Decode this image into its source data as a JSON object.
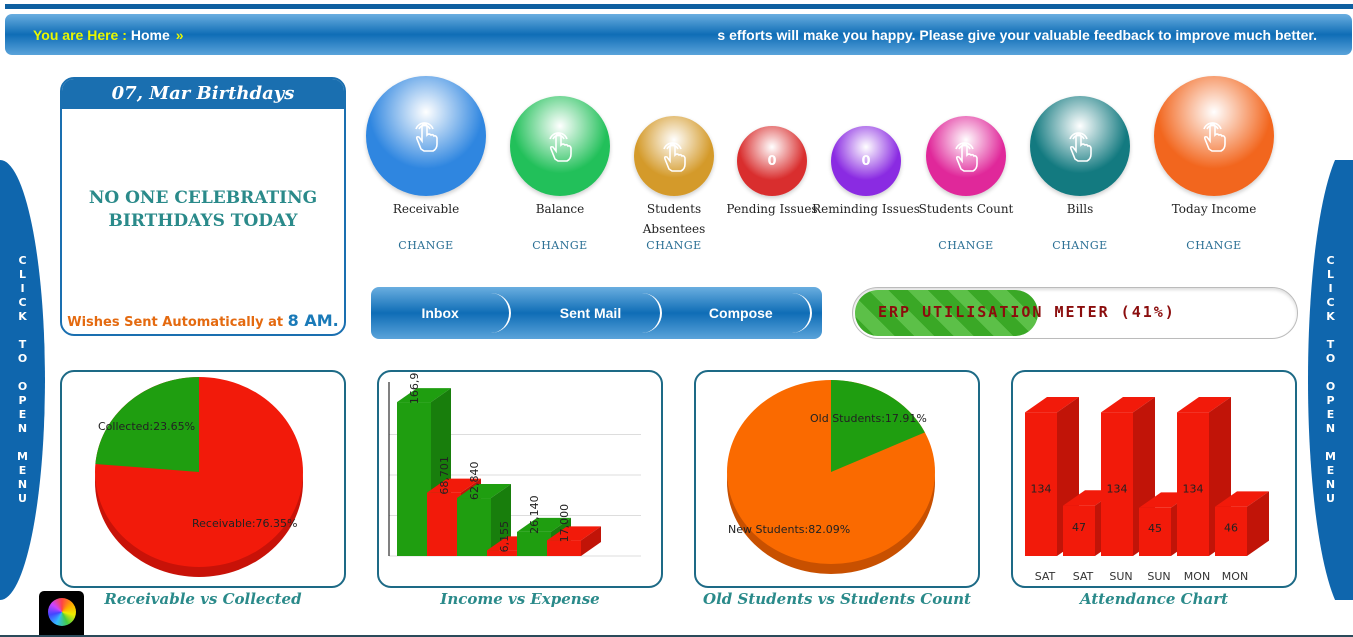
{
  "breadcrumb": {
    "prefix": "You are Here :",
    "current": "Home",
    "arrow": "»",
    "marquee": "s efforts will make you happy. Please give your valuable feedback to improve much better."
  },
  "side_menu": {
    "label": "CLICK TO OPEN MENU"
  },
  "birthdays": {
    "title": "07, Mar Birthdays",
    "message": "NO ONE CELEBRATING BIRTHDAYS TODAY",
    "footer": "Wishes Sent Automatically at",
    "time": "8 AM."
  },
  "tiles": [
    {
      "label": "Receivable",
      "change": "CHANGE",
      "value": "",
      "color": "#2f86e0",
      "icon": "hand-pointer-icon"
    },
    {
      "label": "Balance",
      "change": "CHANGE",
      "value": "",
      "color": "#22c05a",
      "icon": "hand-pointer-icon"
    },
    {
      "label": "Students Absentees",
      "change": "CHANGE",
      "value": "",
      "color": "#d49a2a",
      "icon": "hand-pointer-icon"
    },
    {
      "label": "Pending Issues",
      "change": "",
      "value": "0",
      "color": "#d92e2e",
      "icon": ""
    },
    {
      "label": "Reminding Issues",
      "change": "",
      "value": "0",
      "color": "#8a2be2",
      "icon": ""
    },
    {
      "label": "Students Count",
      "change": "CHANGE",
      "value": "",
      "color": "#e0289a",
      "icon": "hand-pointer-icon"
    },
    {
      "label": "Bills",
      "change": "CHANGE",
      "value": "",
      "color": "#137a80",
      "icon": "hand-pointer-icon"
    },
    {
      "label": "Today Income",
      "change": "CHANGE",
      "value": "",
      "color": "#f2661e",
      "icon": "hand-pointer-icon"
    }
  ],
  "mail": {
    "inbox": "Inbox",
    "sent": "Sent Mail",
    "compose": "Compose"
  },
  "meter": {
    "label": "ERP UTILISATION METER (41%)",
    "percent": 41
  },
  "chart_data": [
    {
      "type": "pie",
      "title": "Receivable vs Collected",
      "slices": [
        {
          "label": "Collected:23.65%",
          "value": 23.65,
          "color": "#1f9e10"
        },
        {
          "label": "Receivable:76.35%",
          "value": 76.35,
          "color": "#f21a0a"
        }
      ]
    },
    {
      "type": "bar",
      "title": "Income vs Expense",
      "values": [
        166900,
        68701,
        62840,
        6155,
        26140,
        17000
      ],
      "labels": [
        "166,900",
        "68,701",
        "62,840",
        "6,155",
        "26,140",
        "17,000"
      ],
      "colors": [
        "#1f9e10",
        "#f21a0a",
        "#1f9e10",
        "#f21a0a",
        "#1f9e10",
        "#f21a0a"
      ],
      "ylim": [
        0,
        180000
      ],
      "grid": true
    },
    {
      "type": "pie",
      "title": "Old Students vs Students Count",
      "slices": [
        {
          "label": "Old Students:17.91%",
          "value": 17.91,
          "color": "#1f9e10"
        },
        {
          "label": "New Students:82.09%",
          "value": 82.09,
          "color": "#fa6a00"
        }
      ]
    },
    {
      "type": "bar",
      "title": "Attendance Chart",
      "categories": [
        "SAT",
        "SAT",
        "SUN",
        "SUN",
        "MON",
        "MON"
      ],
      "values": [
        134,
        47,
        134,
        45,
        134,
        46
      ],
      "labels": [
        "134",
        "47",
        "134",
        "45",
        "134",
        "46"
      ],
      "colors": [
        "#f21a0a",
        "#f21a0a",
        "#f21a0a",
        "#f21a0a",
        "#f21a0a",
        "#f21a0a"
      ],
      "ylim": [
        0,
        140
      ]
    }
  ]
}
